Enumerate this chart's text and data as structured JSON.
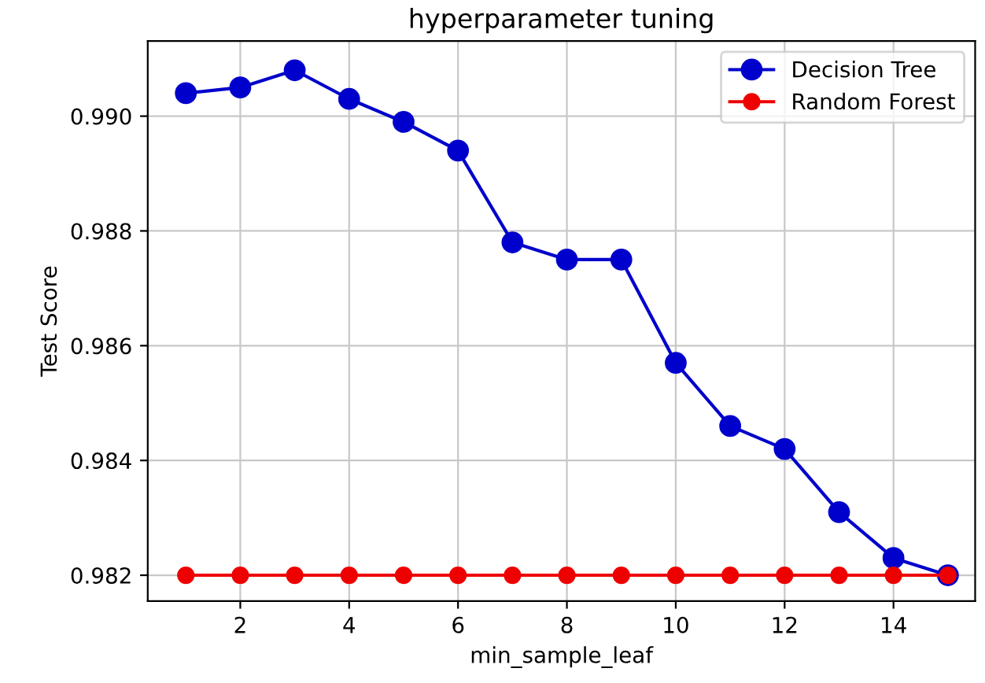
{
  "chart_data": {
    "type": "line",
    "title": "hyperparameter tuning",
    "xlabel": "min_sample_leaf",
    "ylabel": "Test Score",
    "x": [
      1,
      2,
      3,
      4,
      5,
      6,
      7,
      8,
      9,
      10,
      11,
      12,
      13,
      14,
      15
    ],
    "series": [
      {
        "name": "Decision Tree",
        "color": "#0000cc",
        "values": [
          0.9904,
          0.9905,
          0.9908,
          0.9903,
          0.9899,
          0.9894,
          0.9878,
          0.9875,
          0.9875,
          0.9857,
          0.9846,
          0.9842,
          0.9831,
          0.9823,
          0.982
        ]
      },
      {
        "name": "Random Forest",
        "color": "#ee0000",
        "values": [
          0.982,
          0.982,
          0.982,
          0.982,
          0.982,
          0.982,
          0.982,
          0.982,
          0.982,
          0.982,
          0.982,
          0.982,
          0.982,
          0.982,
          0.982
        ]
      }
    ],
    "xlim": [
      0.3,
      15.5
    ],
    "ylim": [
      0.98155,
      0.99131
    ],
    "xticks": [
      2,
      4,
      6,
      8,
      10,
      12,
      14
    ],
    "yticks": [
      {
        "value": 0.982,
        "label": "0.982"
      },
      {
        "value": 0.984,
        "label": "0.984"
      },
      {
        "value": 0.986,
        "label": "0.986"
      },
      {
        "value": 0.988,
        "label": "0.988"
      },
      {
        "value": 0.99,
        "label": "0.990"
      }
    ],
    "grid": true,
    "legend": "top right",
    "marker": "circle",
    "line_style": "solid"
  }
}
